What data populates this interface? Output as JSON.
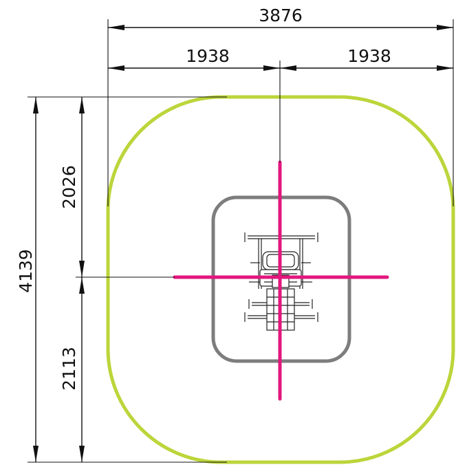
{
  "dimensions": {
    "total_width": "3876",
    "left_half": "1938",
    "right_half": "1938",
    "total_height": "4139",
    "top_part": "2026",
    "bottom_part": "2113"
  },
  "colors": {
    "safety_zone": "#bcd53a",
    "equipment_footprint": "#7d7d7d",
    "center_axes": "#e3177d"
  }
}
